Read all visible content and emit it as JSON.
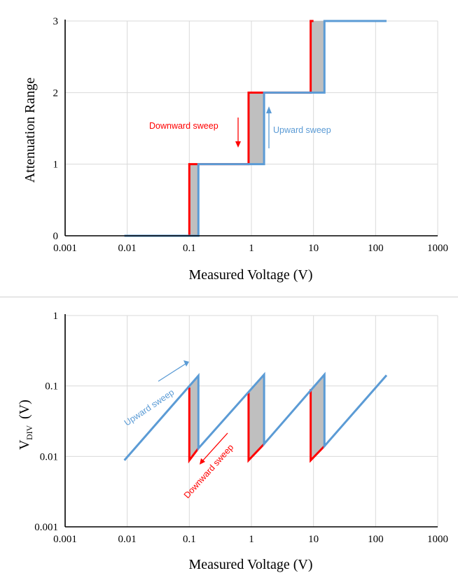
{
  "chart_data": [
    {
      "type": "line",
      "xlabel": "Measured Voltage (V)",
      "ylabel": "Attenuation Range",
      "x_scale": "log",
      "xlim": [
        0.001,
        1000
      ],
      "ylim": [
        0,
        3
      ],
      "x_ticks": [
        "0.001",
        "0.01",
        "0.1",
        "1",
        "10",
        "100",
        "1000"
      ],
      "y_ticks": [
        "0",
        "1",
        "2",
        "3"
      ],
      "grid": true,
      "colors": {
        "downward": "#ff0000",
        "upward": "#5b9bd5",
        "hysteresis_fill": "#bfbfbf"
      },
      "series": [
        {
          "name": "Downward sweep",
          "x": [
            0.1,
            0.1,
            0.9,
            0.9,
            9,
            9,
            10
          ],
          "y": [
            0,
            1,
            1,
            2,
            2,
            3,
            3
          ]
        },
        {
          "name": "Upward sweep",
          "x": [
            0.009,
            0.14,
            0.14,
            1.6,
            1.6,
            15,
            15,
            150
          ],
          "y": [
            0,
            0,
            1,
            1,
            2,
            2,
            3,
            3
          ]
        }
      ],
      "hysteresis_bands": [
        {
          "x": [
            0.1,
            0.14
          ],
          "y": [
            0,
            1
          ]
        },
        {
          "x": [
            0.9,
            1.6
          ],
          "y": [
            1,
            2
          ]
        },
        {
          "x": [
            9,
            15
          ],
          "y": [
            2,
            3
          ]
        }
      ],
      "annotations": [
        {
          "text": "Downward sweep",
          "color": "#ff0000"
        },
        {
          "text": "Upward sweep",
          "color": "#5b9bd5"
        }
      ]
    },
    {
      "type": "line",
      "xlabel": "Measured Voltage (V)",
      "ylabel_main": "V",
      "ylabel_sub": "DIV",
      "ylabel_unit": "(V)",
      "x_scale": "log",
      "y_scale": "log",
      "xlim": [
        0.001,
        1000
      ],
      "ylim": [
        0.001,
        1
      ],
      "x_ticks": [
        "0.001",
        "0.01",
        "0.1",
        "1",
        "10",
        "100",
        "1000"
      ],
      "y_ticks": [
        "0.001",
        "0.01",
        "0.1",
        "1"
      ],
      "grid": true,
      "colors": {
        "downward": "#ff0000",
        "upward": "#5b9bd5",
        "hysteresis_fill": "#bfbfbf"
      },
      "series": [
        {
          "name": "Upward sweep",
          "x": [
            0.009,
            0.14,
            0.14,
            1.6,
            1.6,
            15,
            15,
            150
          ],
          "y": [
            0.0088,
            0.14,
            0.013,
            0.145,
            0.015,
            0.145,
            0.014,
            0.142
          ]
        },
        {
          "name": "Downward sweep",
          "segments": [
            {
              "x": [
                0.1,
                0.1,
                0.14
              ],
              "y": [
                0.095,
                0.0088,
                0.013
              ]
            },
            {
              "x": [
                0.9,
                0.9,
                1.6
              ],
              "y": [
                0.08,
                0.0088,
                0.015
              ]
            },
            {
              "x": [
                9,
                9,
                15
              ],
              "y": [
                0.09,
                0.0088,
                0.014
              ]
            }
          ]
        }
      ],
      "annotations": [
        {
          "text": "Upward sweep",
          "color": "#5b9bd5"
        },
        {
          "text": "Downward sweep",
          "color": "#ff0000"
        }
      ]
    }
  ]
}
